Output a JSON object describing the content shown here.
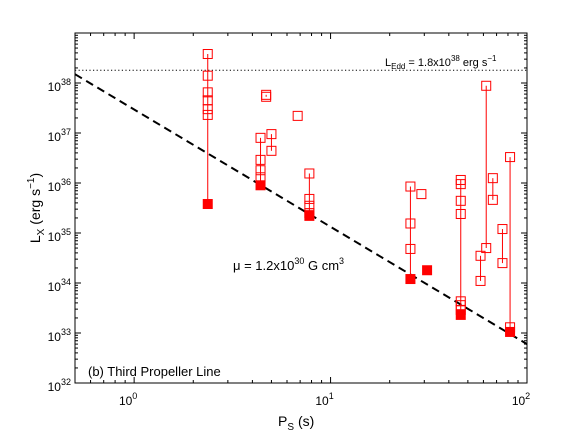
{
  "chart_data": {
    "type": "scatter",
    "xlabel": "P",
    "xlabel_sub": "S",
    "xlabel_unit": "(s)",
    "ylabel": "L",
    "ylabel_sub": "X",
    "ylabel_unit_open": "(erg s",
    "ylabel_unit_sup": "−1",
    "ylabel_unit_close": ")",
    "x_scale": "log",
    "y_scale": "log",
    "xlim": [
      0.5,
      100
    ],
    "ylim": [
      1e+32,
      1e+39
    ],
    "x_ticks": [
      {
        "value": 1,
        "base": "10",
        "exp": "0"
      },
      {
        "value": 10,
        "base": "10",
        "exp": "1"
      },
      {
        "value": 100,
        "base": "10",
        "exp": "2"
      }
    ],
    "y_ticks": [
      {
        "value": 1e+32,
        "base": "10",
        "exp": "32"
      },
      {
        "value": 1e+33,
        "base": "10",
        "exp": "33"
      },
      {
        "value": 1e+34,
        "base": "10",
        "exp": "34"
      },
      {
        "value": 1e+35,
        "base": "10",
        "exp": "35"
      },
      {
        "value": 1e+36,
        "base": "10",
        "exp": "36"
      },
      {
        "value": 1e+37,
        "base": "10",
        "exp": "37"
      },
      {
        "value": 1e+38,
        "base": "10",
        "exp": "38"
      }
    ],
    "grid": false,
    "eddington": {
      "value": 1.8e+38,
      "label_main": "L",
      "label_sub": "Edd",
      "label_mid": " = 1.8x10",
      "label_sup1": "38",
      "label_end": " erg s",
      "label_sup2": "−1"
    },
    "propeller_line": {
      "points": [
        [
          0.5,
          1.5e+38
        ],
        [
          100,
          6e+32
        ]
      ],
      "label_pre": "μ = 1.2x10",
      "label_sup1": "30",
      "label_mid": " G cm",
      "label_sup2": "3"
    },
    "panel_label": "(b) Third Propeller Line",
    "color": "#ff0000",
    "sources": [
      {
        "period": 2.37,
        "lmin": 3.8e+35,
        "open": [
          3.8e+38,
          1.4e+38,
          6.5e+37,
          4.5e+37,
          3e+37,
          2.3e+37
        ]
      },
      {
        "period": 4.4,
        "lmin": 9e+35,
        "open": [
          8e+36,
          2.9e+36,
          1.8e+36,
          1.3e+36
        ]
      },
      {
        "period": 4.7,
        "lmin": null,
        "open": [
          5.8e+37,
          5.3e+37
        ]
      },
      {
        "period": 5.0,
        "lmin": null,
        "open": [
          9.5e+36,
          4.4e+36
        ]
      },
      {
        "period": 6.8,
        "lmin": null,
        "open": [
          2.2e+37
        ]
      },
      {
        "period": 7.8,
        "lmin": 2.2e+35,
        "open": [
          1.55e+36,
          4.8e+35,
          3.5e+35,
          2.5e+35
        ]
      },
      {
        "period": 25.5,
        "lmin": 1.2e+34,
        "open": [
          8.5e+35,
          1.55e+35,
          4.8e+34
        ]
      },
      {
        "period": 29.0,
        "lmin": null,
        "open": [
          6e+35
        ]
      },
      {
        "period": 31.0,
        "lmin": 1.8e+34,
        "open": []
      },
      {
        "period": 46.0,
        "lmin": 2.3e+33,
        "open": [
          1.15e+36,
          9.5e+35,
          4.4e+35,
          2.4e+35,
          4.3e+33,
          3.6e+33,
          2.9e+33
        ]
      },
      {
        "period": 58.0,
        "lmin": null,
        "open": [
          3.5e+34,
          1.1e+34
        ]
      },
      {
        "period": 62.0,
        "lmin": null,
        "open": [
          8.8e+37,
          5e+34
        ]
      },
      {
        "period": 67.0,
        "lmin": null,
        "open": [
          1.25e+36,
          4.6e+35
        ]
      },
      {
        "period": 75.0,
        "lmin": null,
        "open": [
          1.2e+35,
          2.5e+34
        ]
      },
      {
        "period": 82.0,
        "lmin": 1.05e+33,
        "open": [
          3.3e+36,
          1.3e+33
        ]
      }
    ]
  }
}
